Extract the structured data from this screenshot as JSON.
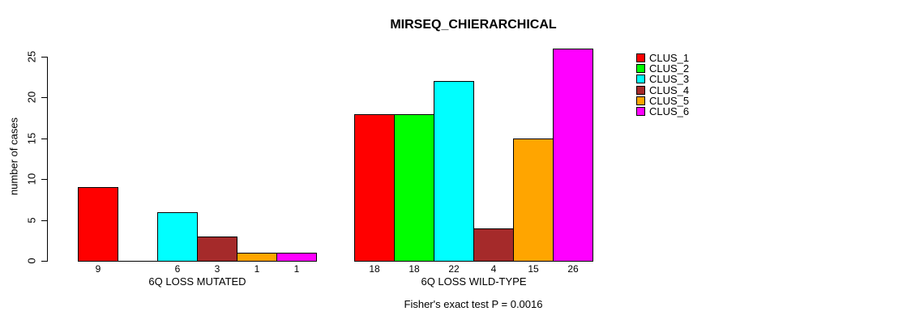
{
  "chart_data": {
    "type": "bar",
    "title": "MIRSEQ_CHIERARCHICAL",
    "xlabel": "",
    "ylabel": "number of cases",
    "categories": [
      "6Q LOSS MUTATED",
      "6Q LOSS WILD-TYPE"
    ],
    "series": [
      {
        "name": "CLUS_1",
        "color": "#FF0000",
        "values": [
          9,
          18
        ]
      },
      {
        "name": "CLUS_2",
        "color": "#00FF00",
        "values": [
          0,
          18
        ]
      },
      {
        "name": "CLUS_3",
        "color": "#00FFFF",
        "values": [
          6,
          22
        ]
      },
      {
        "name": "CLUS_4",
        "color": "#A52A2A",
        "values": [
          3,
          4
        ]
      },
      {
        "name": "CLUS_5",
        "color": "#FFA500",
        "values": [
          1,
          15
        ]
      },
      {
        "name": "CLUS_6",
        "color": "#FF00FF",
        "values": [
          1,
          26
        ]
      }
    ],
    "yticks": [
      0,
      5,
      10,
      15,
      20,
      25
    ],
    "ylim": [
      0,
      26
    ],
    "grid": false,
    "legend_position": "right",
    "bar_value_labels": true,
    "zero_value_labels_hidden": true,
    "annotation": "Fisher's exact test P = 0.0016",
    "axis_color": "#000000",
    "background_color": "#FFFFFF"
  }
}
